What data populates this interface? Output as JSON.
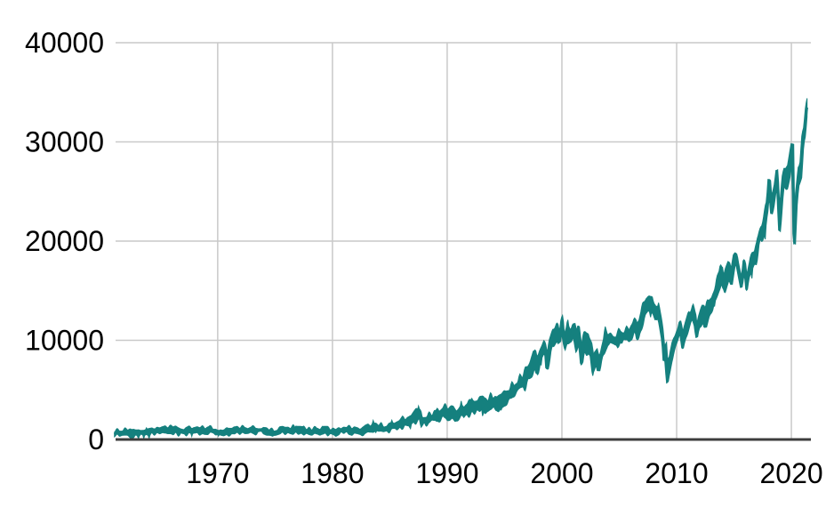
{
  "figure": {
    "background": "#ffffff"
  },
  "chart_data": {
    "type": "line",
    "title": "",
    "xlabel": "",
    "ylabel": "",
    "grid": true,
    "legend": false,
    "x_ticks": [
      1970,
      1980,
      1990,
      2000,
      2010,
      2020
    ],
    "y_ticks": [
      0,
      10000,
      20000,
      30000,
      40000
    ],
    "x_range": [
      1961.1,
      2021.7
    ],
    "y_range": [
      0,
      40000
    ],
    "colors": {
      "line": "#15807E",
      "grid": "#C9C9C9",
      "axis": "#3D3D3D",
      "tick_text": "#000000",
      "background": "#FFFFFF"
    },
    "points": [
      [
        1961.0,
        615
      ],
      [
        1961.4,
        690
      ],
      [
        1961.9,
        731
      ],
      [
        1962.2,
        700
      ],
      [
        1962.5,
        536
      ],
      [
        1962.9,
        650
      ],
      [
        1963.5,
        715
      ],
      [
        1964.2,
        800
      ],
      [
        1964.8,
        860
      ],
      [
        1965.4,
        930
      ],
      [
        1966.1,
        995
      ],
      [
        1966.5,
        860
      ],
      [
        1966.8,
        744
      ],
      [
        1967.3,
        860
      ],
      [
        1967.8,
        920
      ],
      [
        1968.2,
        880
      ],
      [
        1968.9,
        985
      ],
      [
        1969.5,
        930
      ],
      [
        1970.0,
        800
      ],
      [
        1970.4,
        631
      ],
      [
        1970.9,
        790
      ],
      [
        1971.3,
        900
      ],
      [
        1971.7,
        880
      ],
      [
        1972.2,
        940
      ],
      [
        1972.9,
        1030
      ],
      [
        1973.0,
        1052
      ],
      [
        1973.5,
        920
      ],
      [
        1973.9,
        940
      ],
      [
        1974.2,
        850
      ],
      [
        1974.6,
        770
      ],
      [
        1974.9,
        578
      ],
      [
        1975.1,
        700
      ],
      [
        1975.5,
        850
      ],
      [
        1976.0,
        900
      ],
      [
        1976.7,
        1015
      ],
      [
        1977.1,
        960
      ],
      [
        1977.6,
        900
      ],
      [
        1978.2,
        742
      ],
      [
        1978.6,
        880
      ],
      [
        1979.0,
        830
      ],
      [
        1979.5,
        860
      ],
      [
        1979.8,
        820
      ],
      [
        1980.2,
        770
      ],
      [
        1980.6,
        900
      ],
      [
        1980.9,
        1000
      ],
      [
        1981.3,
        1024
      ],
      [
        1981.8,
        890
      ],
      [
        1982.2,
        830
      ],
      [
        1982.6,
        777
      ],
      [
        1982.95,
        1045
      ],
      [
        1983.4,
        1230
      ],
      [
        1983.9,
        1270
      ],
      [
        1984.4,
        1110
      ],
      [
        1984.9,
        1200
      ],
      [
        1985.4,
        1300
      ],
      [
        1985.9,
        1480
      ],
      [
        1986.2,
        1800
      ],
      [
        1986.6,
        1780
      ],
      [
        1986.95,
        1900
      ],
      [
        1987.3,
        2340
      ],
      [
        1987.62,
        2722
      ],
      [
        1987.8,
        1739
      ],
      [
        1987.95,
        1940
      ],
      [
        1988.3,
        2050
      ],
      [
        1988.8,
        2130
      ],
      [
        1989.2,
        2340
      ],
      [
        1989.75,
        2791
      ],
      [
        1989.95,
        2750
      ],
      [
        1990.1,
        2710
      ],
      [
        1990.45,
        2999
      ],
      [
        1990.78,
        2365
      ],
      [
        1991.0,
        2610
      ],
      [
        1991.3,
        2950
      ],
      [
        1991.8,
        3050
      ],
      [
        1992.2,
        3280
      ],
      [
        1992.7,
        3310
      ],
      [
        1993.2,
        3440
      ],
      [
        1993.8,
        3680
      ],
      [
        1994.1,
        3930
      ],
      [
        1994.35,
        3650
      ],
      [
        1994.8,
        3830
      ],
      [
        1995.3,
        4300
      ],
      [
        1995.8,
        4800
      ],
      [
        1996.1,
        5300
      ],
      [
        1996.5,
        5600
      ],
      [
        1996.9,
        6300
      ],
      [
        1997.3,
        6900
      ],
      [
        1997.6,
        8200
      ],
      [
        1997.82,
        7200
      ],
      [
        1998.1,
        8300
      ],
      [
        1998.55,
        9300
      ],
      [
        1998.68,
        7550
      ],
      [
        1998.95,
        9150
      ],
      [
        1999.3,
        10400
      ],
      [
        1999.6,
        10900
      ],
      [
        1999.8,
        10300
      ],
      [
        2000.0,
        11700
      ],
      [
        2000.18,
        9850
      ],
      [
        2000.4,
        10800
      ],
      [
        2000.75,
        10600
      ],
      [
        2001.05,
        10850
      ],
      [
        2001.3,
        9600
      ],
      [
        2001.45,
        10450
      ],
      [
        2001.72,
        8236
      ],
      [
        2001.95,
        9950
      ],
      [
        2002.2,
        10350
      ],
      [
        2002.55,
        9100
      ],
      [
        2002.77,
        7286
      ],
      [
        2002.95,
        8400
      ],
      [
        2003.2,
        7700
      ],
      [
        2003.6,
        9150
      ],
      [
        2003.95,
        10350
      ],
      [
        2004.3,
        10200
      ],
      [
        2004.75,
        9950
      ],
      [
        2005.05,
        10700
      ],
      [
        2005.35,
        10300
      ],
      [
        2005.8,
        10600
      ],
      [
        2006.05,
        10950
      ],
      [
        2006.4,
        11300
      ],
      [
        2006.6,
        10800
      ],
      [
        2006.95,
        12350
      ],
      [
        2007.4,
        13550
      ],
      [
        2007.78,
        14164
      ],
      [
        2008.0,
        13050
      ],
      [
        2008.2,
        12300
      ],
      [
        2008.4,
        12750
      ],
      [
        2008.65,
        11300
      ],
      [
        2008.78,
        10500
      ],
      [
        2008.9,
        8450
      ],
      [
        2009.05,
        8900
      ],
      [
        2009.18,
        6547
      ],
      [
        2009.5,
        8500
      ],
      [
        2009.8,
        9900
      ],
      [
        2010.05,
        10550
      ],
      [
        2010.3,
        11200
      ],
      [
        2010.52,
        9700
      ],
      [
        2010.9,
        11250
      ],
      [
        2011.15,
        12200
      ],
      [
        2011.35,
        12800
      ],
      [
        2011.6,
        11950
      ],
      [
        2011.75,
        10700
      ],
      [
        2012.0,
        12300
      ],
      [
        2012.3,
        13100
      ],
      [
        2012.5,
        12200
      ],
      [
        2012.8,
        13400
      ],
      [
        2013.1,
        13900
      ],
      [
        2013.5,
        15200
      ],
      [
        2013.95,
        16400
      ],
      [
        2014.1,
        15500
      ],
      [
        2014.55,
        17000
      ],
      [
        2014.78,
        16100
      ],
      [
        2015.0,
        17800
      ],
      [
        2015.2,
        18300
      ],
      [
        2015.65,
        15650
      ],
      [
        2015.9,
        17700
      ],
      [
        2016.1,
        15750
      ],
      [
        2016.5,
        17900
      ],
      [
        2016.85,
        18300
      ],
      [
        2017.1,
        20000
      ],
      [
        2017.5,
        21300
      ],
      [
        2017.9,
        23500
      ],
      [
        2018.07,
        26616
      ],
      [
        2018.25,
        23550
      ],
      [
        2018.55,
        24800
      ],
      [
        2018.74,
        26828
      ],
      [
        2018.97,
        21750
      ],
      [
        2019.25,
        26000
      ],
      [
        2019.45,
        26600
      ],
      [
        2019.6,
        26100
      ],
      [
        2019.85,
        27300
      ],
      [
        2020.05,
        28800
      ],
      [
        2020.12,
        29551
      ],
      [
        2020.23,
        18592
      ],
      [
        2020.45,
        24400
      ],
      [
        2020.65,
        27100
      ],
      [
        2020.8,
        26900
      ],
      [
        2021.0,
        30600
      ],
      [
        2021.15,
        31200
      ],
      [
        2021.3,
        33100
      ],
      [
        2021.42,
        33875
      ]
    ]
  }
}
